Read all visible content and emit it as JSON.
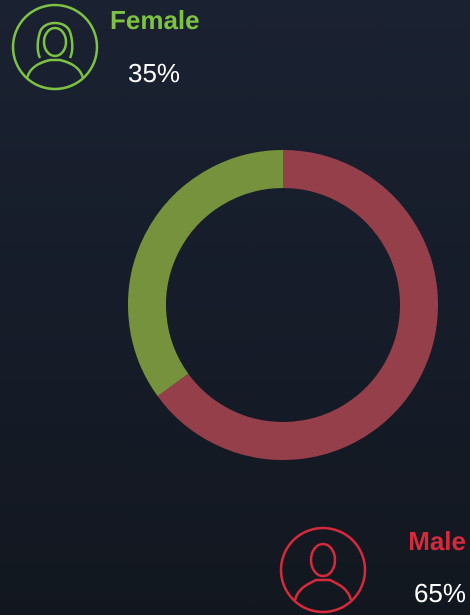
{
  "chart_data": {
    "type": "pie",
    "donut": true,
    "categories": [
      "Female",
      "Male"
    ],
    "values": [
      35,
      65
    ],
    "value_labels": [
      "35%",
      "65%"
    ],
    "colors": [
      "#76923c",
      "#953f4a"
    ]
  }
}
